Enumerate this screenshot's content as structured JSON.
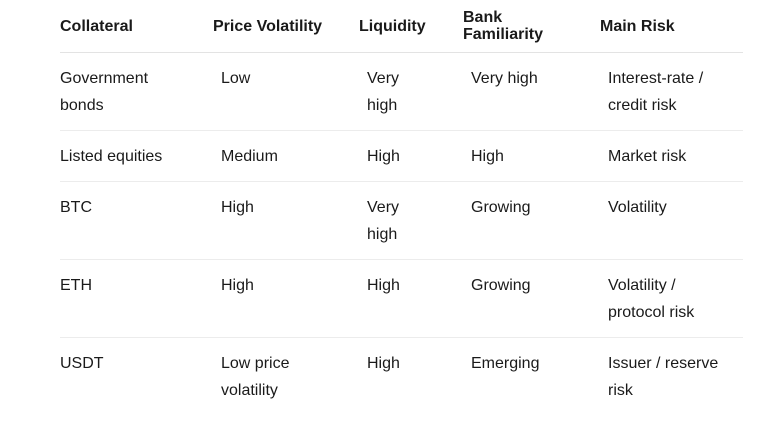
{
  "table": {
    "header": [
      "Collateral",
      "Price Volatility",
      "Liquidity",
      "Bank Familiarity",
      "Main Risk"
    ],
    "rows": [
      [
        "Government bonds",
        "Low",
        "Very high",
        "Very high",
        "Interest-rate / credit risk"
      ],
      [
        "Listed equities",
        "Medium",
        "High",
        "High",
        "Market risk"
      ],
      [
        "BTC",
        "High",
        "Very high",
        "Growing",
        "Volatility"
      ],
      [
        "ETH",
        "High",
        "High",
        "Growing",
        "Volatility / protocol risk"
      ],
      [
        "USDT",
        "Low price volatility",
        "High",
        "Emerging",
        "Issuer / reserve risk"
      ]
    ]
  }
}
